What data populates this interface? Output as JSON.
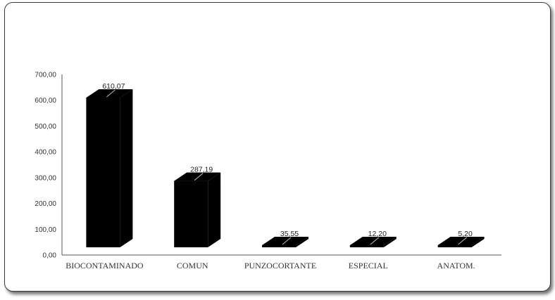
{
  "chart_data": {
    "type": "bar",
    "style": "3d-column",
    "title": "",
    "xlabel": "",
    "ylabel": "",
    "categories": [
      "BIOCONTAMINADO",
      "COMUN",
      "PUNZOCORTANTE",
      "ESPECIAL",
      "ANATOM."
    ],
    "values": [
      610.07,
      287.19,
      35.55,
      12.2,
      5.2
    ],
    "value_labels": [
      "610,07",
      "287,19",
      "35,55",
      "12,20",
      "5,20"
    ],
    "ylim": [
      0,
      700
    ],
    "yticks": [
      "0,00",
      "100,00",
      "200,00",
      "300,00",
      "400,00",
      "500,00",
      "600,00",
      "700,00"
    ],
    "bar_color": "#000000",
    "grid": false,
    "legend": "none"
  }
}
